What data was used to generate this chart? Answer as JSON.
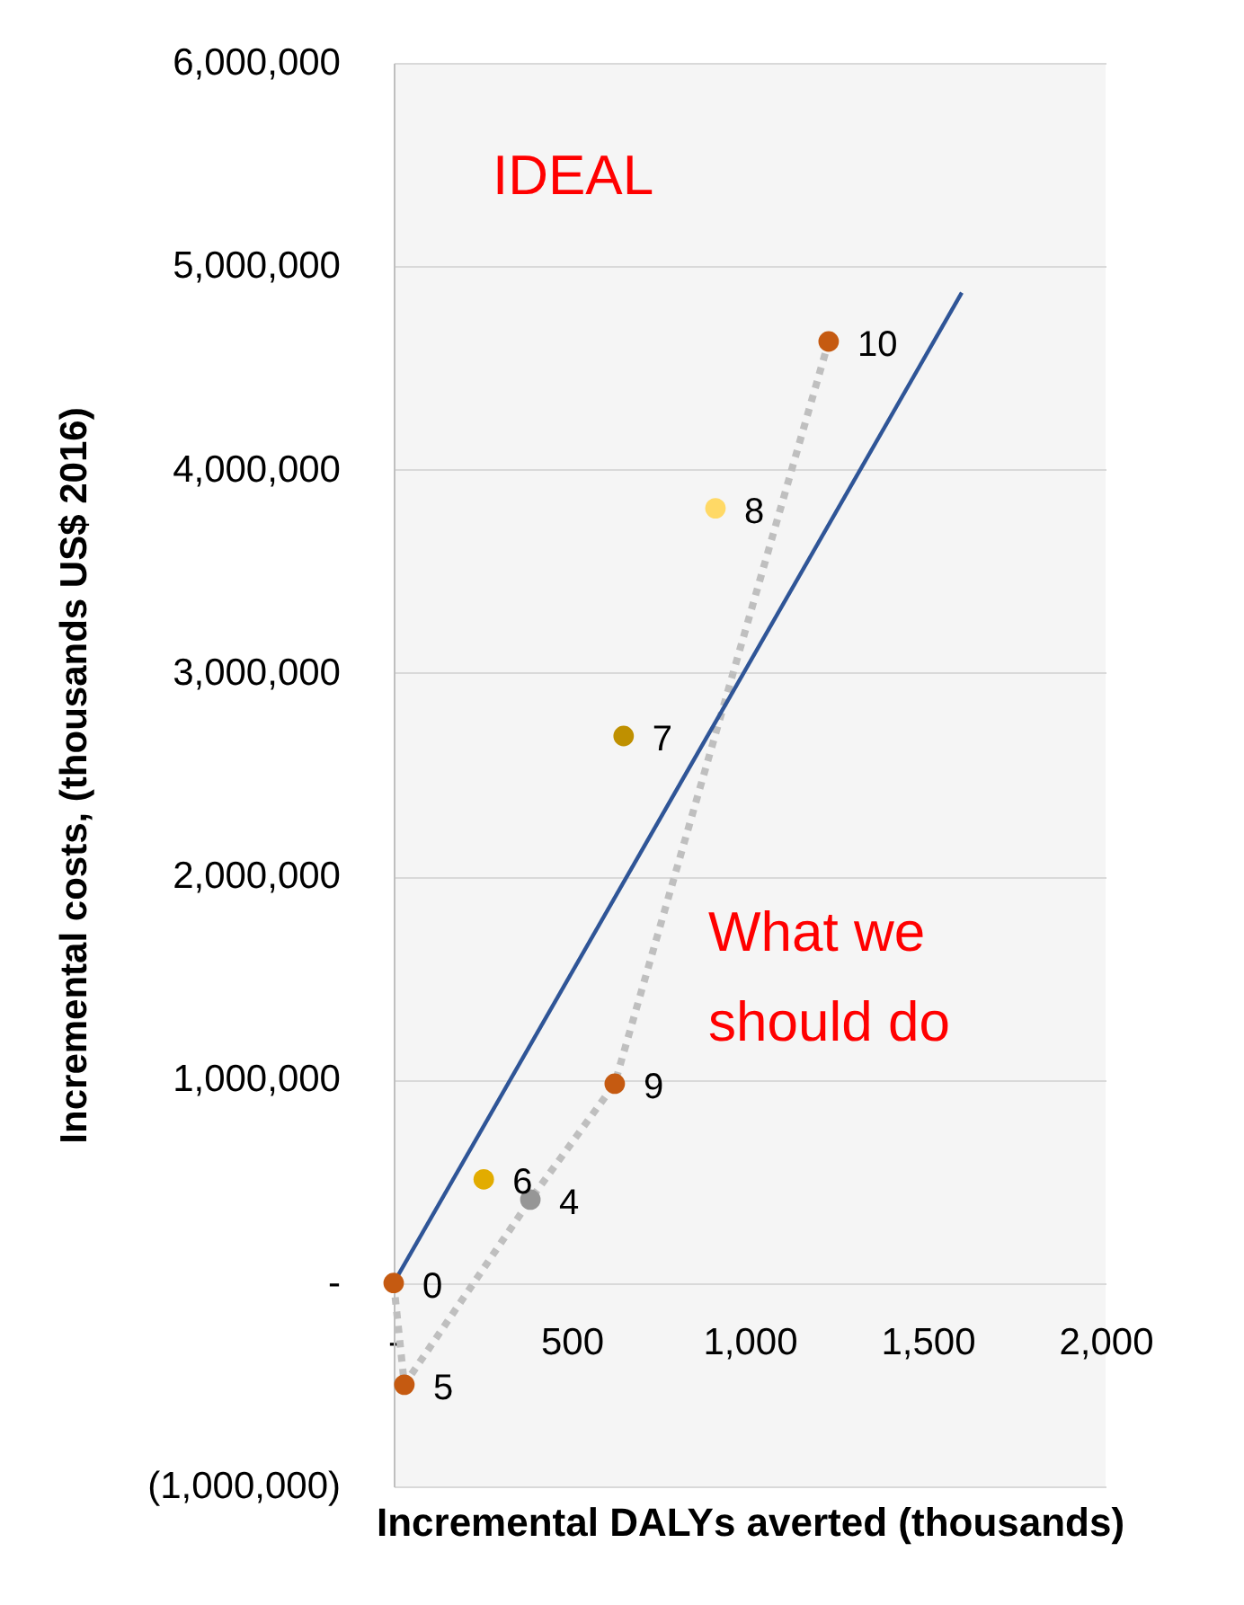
{
  "chart_data": {
    "type": "scatter",
    "xlabel": "Incremental DALYs averted (thousands)",
    "ylabel": "Incremental costs, (thousands US$ 2016)",
    "xlim": [
      0,
      2000
    ],
    "xticks": [
      {
        "value": 0,
        "label": "-"
      },
      500,
      {
        "value": 1000,
        "label": "1,000"
      },
      {
        "value": 1500,
        "label": "1,500"
      },
      {
        "value": 2000,
        "label": "2,000"
      }
    ],
    "ylim": [
      -1000000,
      6000000
    ],
    "yticks": [
      {
        "value": -1000000,
        "label": "(1,000,000)"
      },
      {
        "value": 0,
        "label": "-"
      },
      {
        "value": 1000000,
        "label": "1,000,000"
      },
      {
        "value": 2000000,
        "label": "2,000,000"
      },
      {
        "value": 3000000,
        "label": "3,000,000"
      },
      {
        "value": 4000000,
        "label": "4,000,000"
      },
      {
        "value": 5000000,
        "label": "5,000,000"
      },
      {
        "value": 6000000,
        "label": "6,000,000"
      }
    ],
    "grid": "y",
    "legend": false,
    "marker": "circle",
    "annotations": [
      "IDEAL",
      "What we should do"
    ],
    "series": [
      {
        "type": "line",
        "color": "#bfbfbf",
        "line_style": "dotted",
        "marker": "none",
        "x": [
          0,
          30,
          384,
          621,
          1222
        ],
        "values": [
          0,
          -500000,
          410000,
          980000,
          4630000
        ]
      },
      {
        "type": "line",
        "color": "#2f5597",
        "line_style": "solid",
        "marker": "none",
        "x": [
          0,
          1596
        ],
        "values": [
          0,
          4870000
        ]
      },
      {
        "name": "0",
        "color": "#c55a11",
        "x": [
          0
        ],
        "values": [
          0
        ]
      },
      {
        "name": "5",
        "color": "#c55a11",
        "x": [
          30
        ],
        "values": [
          -500000
        ]
      },
      {
        "name": "6",
        "color": "#e2ac00",
        "x": [
          253
        ],
        "values": [
          510000
        ]
      },
      {
        "name": "4",
        "color": "#969696",
        "x": [
          384
        ],
        "values": [
          410000
        ]
      },
      {
        "name": "9",
        "color": "#c55a11",
        "x": [
          621
        ],
        "values": [
          980000
        ]
      },
      {
        "name": "7",
        "color": "#bf9000",
        "x": [
          646
        ],
        "values": [
          2690000
        ]
      },
      {
        "name": "8",
        "color": "#ffd966",
        "x": [
          904
        ],
        "values": [
          3810000
        ]
      },
      {
        "name": "10",
        "color": "#c55a11",
        "x": [
          1222
        ],
        "values": [
          4630000
        ]
      }
    ]
  }
}
